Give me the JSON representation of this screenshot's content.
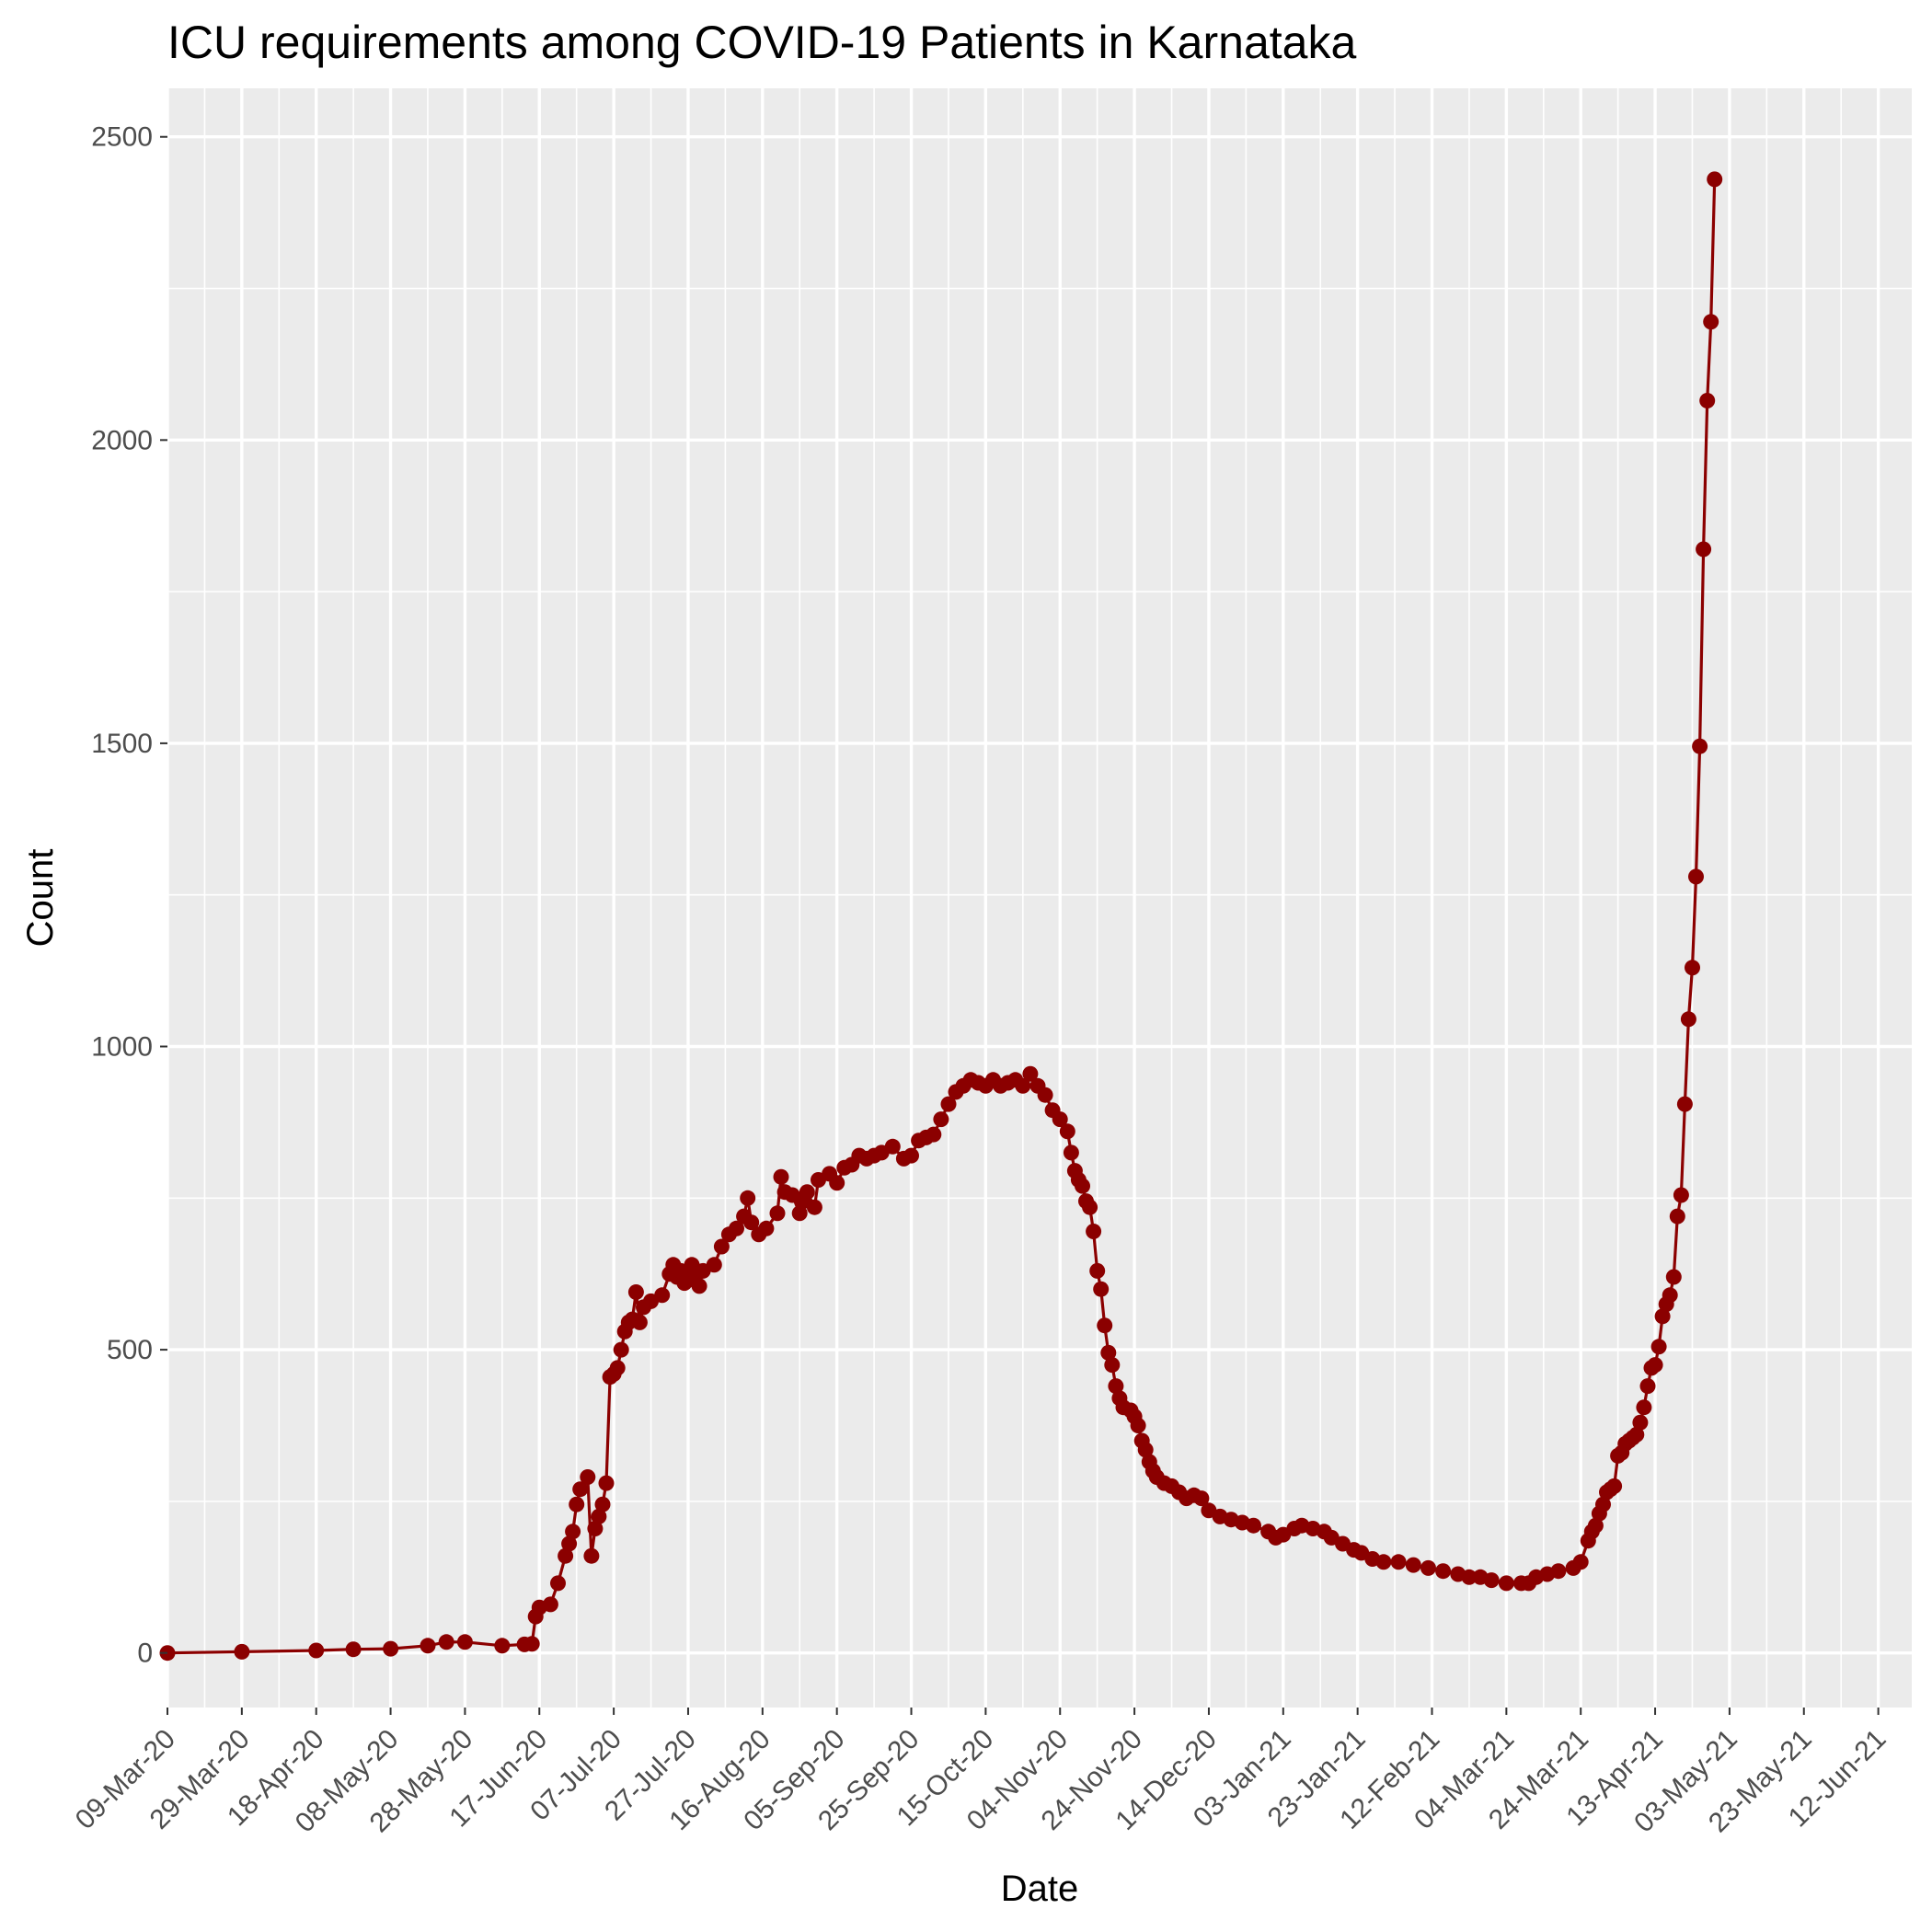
{
  "chart_data": {
    "type": "line",
    "title": "ICU requirements among COVID-19 Patients in Karnataka",
    "xlabel": "Date",
    "ylabel": "Count",
    "x_type": "date",
    "x_range": [
      "2020-03-09",
      "2021-06-21"
    ],
    "ylim": [
      -90,
      2580
    ],
    "y_ticks": [
      0,
      500,
      1000,
      1500,
      2000,
      2500
    ],
    "x_ticks": [
      {
        "date": "2020-03-09",
        "label": "09-Mar-20"
      },
      {
        "date": "2020-03-29",
        "label": "29-Mar-20"
      },
      {
        "date": "2020-04-18",
        "label": "18-Apr-20"
      },
      {
        "date": "2020-05-08",
        "label": "08-May-20"
      },
      {
        "date": "2020-05-28",
        "label": "28-May-20"
      },
      {
        "date": "2020-06-17",
        "label": "17-Jun-20"
      },
      {
        "date": "2020-07-07",
        "label": "07-Jul-20"
      },
      {
        "date": "2020-07-27",
        "label": "27-Jul-20"
      },
      {
        "date": "2020-08-16",
        "label": "16-Aug-20"
      },
      {
        "date": "2020-09-05",
        "label": "05-Sep-20"
      },
      {
        "date": "2020-09-25",
        "label": "25-Sep-20"
      },
      {
        "date": "2020-10-15",
        "label": "15-Oct-20"
      },
      {
        "date": "2020-11-04",
        "label": "04-Nov-20"
      },
      {
        "date": "2020-11-24",
        "label": "24-Nov-20"
      },
      {
        "date": "2020-12-14",
        "label": "14-Dec-20"
      },
      {
        "date": "2021-01-03",
        "label": "03-Jan-21"
      },
      {
        "date": "2021-01-23",
        "label": "23-Jan-21"
      },
      {
        "date": "2021-02-12",
        "label": "12-Feb-21"
      },
      {
        "date": "2021-03-04",
        "label": "04-Mar-21"
      },
      {
        "date": "2021-03-24",
        "label": "24-Mar-21"
      },
      {
        "date": "2021-04-13",
        "label": "13-Apr-21"
      },
      {
        "date": "2021-05-03",
        "label": "03-May-21"
      },
      {
        "date": "2021-05-23",
        "label": "23-May-21"
      },
      {
        "date": "2021-06-12",
        "label": "12-Jun-21"
      }
    ],
    "grid": true,
    "legend": "none",
    "colors": {
      "line": "#8B0000",
      "point": "#8B0000",
      "panel": "#EBEBEB",
      "grid": "#FFFFFF"
    },
    "series": [
      {
        "points": [
          [
            "2020-03-09",
            0
          ],
          [
            "2020-03-29",
            2
          ],
          [
            "2020-04-18",
            4
          ],
          [
            "2020-04-28",
            6
          ],
          [
            "2020-05-08",
            7
          ],
          [
            "2020-05-18",
            12
          ],
          [
            "2020-05-23",
            18
          ],
          [
            "2020-05-28",
            18
          ],
          [
            "2020-06-07",
            12
          ],
          [
            "2020-06-13",
            14
          ],
          [
            "2020-06-15",
            15
          ],
          [
            "2020-06-16",
            60
          ],
          [
            "2020-06-17",
            75
          ],
          [
            "2020-06-20",
            80
          ],
          [
            "2020-06-22",
            115
          ],
          [
            "2020-06-24",
            160
          ],
          [
            "2020-06-25",
            180
          ],
          [
            "2020-06-26",
            200
          ],
          [
            "2020-06-27",
            245
          ],
          [
            "2020-06-28",
            270
          ],
          [
            "2020-06-30",
            290
          ],
          [
            "2020-07-01",
            160
          ],
          [
            "2020-07-02",
            205
          ],
          [
            "2020-07-03",
            225
          ],
          [
            "2020-07-04",
            245
          ],
          [
            "2020-07-05",
            280
          ],
          [
            "2020-07-06",
            455
          ],
          [
            "2020-07-07",
            460
          ],
          [
            "2020-07-08",
            470
          ],
          [
            "2020-07-09",
            500
          ],
          [
            "2020-07-10",
            530
          ],
          [
            "2020-07-11",
            545
          ],
          [
            "2020-07-12",
            550
          ],
          [
            "2020-07-13",
            595
          ],
          [
            "2020-07-14",
            545
          ],
          [
            "2020-07-15",
            570
          ],
          [
            "2020-07-17",
            580
          ],
          [
            "2020-07-20",
            590
          ],
          [
            "2020-07-22",
            625
          ],
          [
            "2020-07-23",
            640
          ],
          [
            "2020-07-24",
            620
          ],
          [
            "2020-07-25",
            630
          ],
          [
            "2020-07-26",
            610
          ],
          [
            "2020-07-27",
            615
          ],
          [
            "2020-07-28",
            640
          ],
          [
            "2020-07-29",
            625
          ],
          [
            "2020-07-30",
            605
          ],
          [
            "2020-07-31",
            630
          ],
          [
            "2020-08-03",
            640
          ],
          [
            "2020-08-05",
            670
          ],
          [
            "2020-08-07",
            690
          ],
          [
            "2020-08-09",
            700
          ],
          [
            "2020-08-11",
            720
          ],
          [
            "2020-08-12",
            750
          ],
          [
            "2020-08-13",
            710
          ],
          [
            "2020-08-15",
            690
          ],
          [
            "2020-08-17",
            700
          ],
          [
            "2020-08-20",
            725
          ],
          [
            "2020-08-21",
            785
          ],
          [
            "2020-08-22",
            760
          ],
          [
            "2020-08-24",
            755
          ],
          [
            "2020-08-26",
            725
          ],
          [
            "2020-08-27",
            745
          ],
          [
            "2020-08-28",
            760
          ],
          [
            "2020-08-30",
            735
          ],
          [
            "2020-08-31",
            780
          ],
          [
            "2020-09-03",
            790
          ],
          [
            "2020-09-05",
            775
          ],
          [
            "2020-09-07",
            800
          ],
          [
            "2020-09-09",
            805
          ],
          [
            "2020-09-11",
            820
          ],
          [
            "2020-09-13",
            815
          ],
          [
            "2020-09-15",
            820
          ],
          [
            "2020-09-17",
            825
          ],
          [
            "2020-09-20",
            835
          ],
          [
            "2020-09-23",
            815
          ],
          [
            "2020-09-25",
            820
          ],
          [
            "2020-09-27",
            845
          ],
          [
            "2020-09-29",
            850
          ],
          [
            "2020-10-01",
            855
          ],
          [
            "2020-10-03",
            880
          ],
          [
            "2020-10-05",
            905
          ],
          [
            "2020-10-07",
            925
          ],
          [
            "2020-10-09",
            935
          ],
          [
            "2020-10-11",
            945
          ],
          [
            "2020-10-13",
            940
          ],
          [
            "2020-10-15",
            935
          ],
          [
            "2020-10-17",
            945
          ],
          [
            "2020-10-19",
            935
          ],
          [
            "2020-10-21",
            940
          ],
          [
            "2020-10-23",
            945
          ],
          [
            "2020-10-25",
            935
          ],
          [
            "2020-10-27",
            955
          ],
          [
            "2020-10-29",
            935
          ],
          [
            "2020-10-31",
            920
          ],
          [
            "2020-11-02",
            895
          ],
          [
            "2020-11-04",
            880
          ],
          [
            "2020-11-06",
            860
          ],
          [
            "2020-11-07",
            825
          ],
          [
            "2020-11-08",
            795
          ],
          [
            "2020-11-09",
            780
          ],
          [
            "2020-11-10",
            770
          ],
          [
            "2020-11-11",
            745
          ],
          [
            "2020-11-12",
            735
          ],
          [
            "2020-11-13",
            695
          ],
          [
            "2020-11-14",
            630
          ],
          [
            "2020-11-15",
            600
          ],
          [
            "2020-11-16",
            540
          ],
          [
            "2020-11-17",
            495
          ],
          [
            "2020-11-18",
            475
          ],
          [
            "2020-11-19",
            440
          ],
          [
            "2020-11-20",
            420
          ],
          [
            "2020-11-21",
            405
          ],
          [
            "2020-11-23",
            400
          ],
          [
            "2020-11-24",
            390
          ],
          [
            "2020-11-25",
            375
          ],
          [
            "2020-11-26",
            350
          ],
          [
            "2020-11-27",
            335
          ],
          [
            "2020-11-28",
            315
          ],
          [
            "2020-11-29",
            300
          ],
          [
            "2020-11-30",
            290
          ],
          [
            "2020-12-02",
            280
          ],
          [
            "2020-12-04",
            275
          ],
          [
            "2020-12-06",
            265
          ],
          [
            "2020-12-08",
            255
          ],
          [
            "2020-12-10",
            260
          ],
          [
            "2020-12-12",
            255
          ],
          [
            "2020-12-14",
            235
          ],
          [
            "2020-12-17",
            225
          ],
          [
            "2020-12-20",
            220
          ],
          [
            "2020-12-23",
            215
          ],
          [
            "2020-12-26",
            210
          ],
          [
            "2020-12-30",
            200
          ],
          [
            "2021-01-01",
            190
          ],
          [
            "2021-01-03",
            195
          ],
          [
            "2021-01-06",
            205
          ],
          [
            "2021-01-08",
            210
          ],
          [
            "2021-01-11",
            205
          ],
          [
            "2021-01-14",
            200
          ],
          [
            "2021-01-16",
            190
          ],
          [
            "2021-01-19",
            180
          ],
          [
            "2021-01-22",
            170
          ],
          [
            "2021-01-24",
            165
          ],
          [
            "2021-01-27",
            155
          ],
          [
            "2021-01-30",
            150
          ],
          [
            "2021-02-03",
            150
          ],
          [
            "2021-02-07",
            145
          ],
          [
            "2021-02-11",
            140
          ],
          [
            "2021-02-15",
            135
          ],
          [
            "2021-02-19",
            130
          ],
          [
            "2021-02-22",
            125
          ],
          [
            "2021-02-25",
            125
          ],
          [
            "2021-02-28",
            120
          ],
          [
            "2021-03-04",
            115
          ],
          [
            "2021-03-08",
            115
          ],
          [
            "2021-03-10",
            115
          ],
          [
            "2021-03-12",
            125
          ],
          [
            "2021-03-15",
            130
          ],
          [
            "2021-03-18",
            135
          ],
          [
            "2021-03-22",
            140
          ],
          [
            "2021-03-24",
            150
          ],
          [
            "2021-03-26",
            185
          ],
          [
            "2021-03-27",
            200
          ],
          [
            "2021-03-28",
            210
          ],
          [
            "2021-03-29",
            230
          ],
          [
            "2021-03-30",
            245
          ],
          [
            "2021-03-31",
            265
          ],
          [
            "2021-04-01",
            270
          ],
          [
            "2021-04-02",
            275
          ],
          [
            "2021-04-03",
            325
          ],
          [
            "2021-04-04",
            330
          ],
          [
            "2021-04-05",
            345
          ],
          [
            "2021-04-06",
            350
          ],
          [
            "2021-04-07",
            355
          ],
          [
            "2021-04-08",
            360
          ],
          [
            "2021-04-09",
            380
          ],
          [
            "2021-04-10",
            405
          ],
          [
            "2021-04-11",
            440
          ],
          [
            "2021-04-12",
            470
          ],
          [
            "2021-04-13",
            475
          ],
          [
            "2021-04-14",
            505
          ],
          [
            "2021-04-15",
            555
          ],
          [
            "2021-04-16",
            575
          ],
          [
            "2021-04-17",
            590
          ],
          [
            "2021-04-18",
            620
          ],
          [
            "2021-04-19",
            720
          ],
          [
            "2021-04-20",
            755
          ],
          [
            "2021-04-21",
            905
          ],
          [
            "2021-04-22",
            1045
          ],
          [
            "2021-04-23",
            1130
          ],
          [
            "2021-04-24",
            1280
          ],
          [
            "2021-04-25",
            1495
          ],
          [
            "2021-04-26",
            1820
          ],
          [
            "2021-04-27",
            2065
          ],
          [
            "2021-04-28",
            2195
          ],
          [
            "2021-04-29",
            2430
          ]
        ]
      }
    ]
  }
}
